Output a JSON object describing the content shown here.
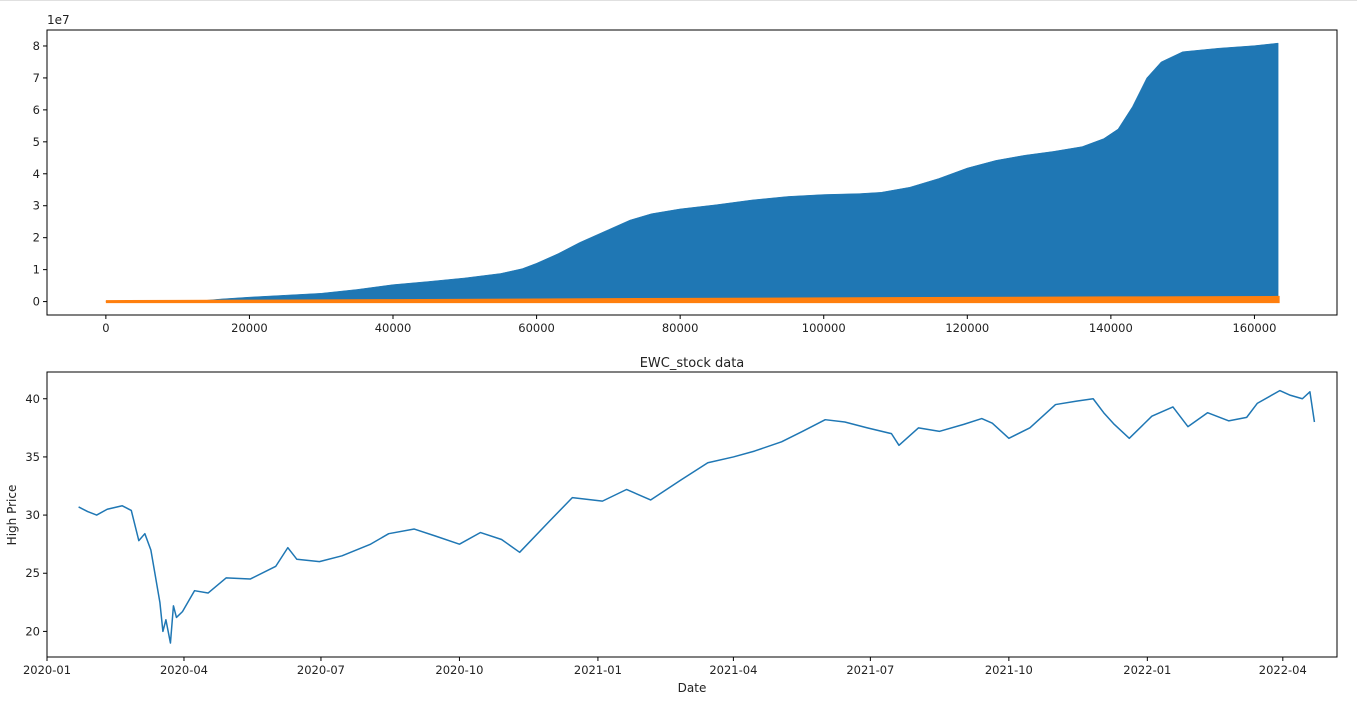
{
  "chart_data": [
    {
      "type": "area",
      "title": "",
      "xlabel": "",
      "ylabel": "",
      "offset_text": "1e7",
      "xlim": [
        -8200,
        171500
      ],
      "ylim": [
        -4200000,
        85000000
      ],
      "x_ticks": [
        0,
        20000,
        40000,
        60000,
        80000,
        100000,
        120000,
        140000,
        160000
      ],
      "x_tick_labels": [
        "0",
        "20000",
        "40000",
        "60000",
        "80000",
        "100000",
        "120000",
        "140000",
        "160000"
      ],
      "y_ticks": [
        0,
        10000000,
        20000000,
        30000000,
        40000000,
        50000000,
        60000000,
        70000000,
        80000000
      ],
      "y_tick_labels": [
        "0",
        "1",
        "2",
        "3",
        "4",
        "5",
        "6",
        "7",
        "8"
      ],
      "grid": false,
      "series": [
        {
          "color": "#1f77b4",
          "x": [
            0,
            5000,
            10000,
            13000,
            16000,
            20000,
            25000,
            30000,
            35000,
            40000,
            45000,
            50000,
            55000,
            58000,
            60000,
            63000,
            66000,
            70000,
            73000,
            76000,
            80000,
            85000,
            90000,
            95000,
            100000,
            105000,
            108000,
            112000,
            116000,
            120000,
            124000,
            128000,
            132000,
            136000,
            139000,
            141000,
            143000,
            145000,
            147000,
            150000,
            155000,
            160000,
            163300
          ],
          "y": [
            0,
            0,
            0,
            200000,
            800000,
            1400000,
            2000000,
            2600000,
            3800000,
            5300000,
            6300000,
            7400000,
            8800000,
            10300000,
            12000000,
            15000000,
            18500000,
            22500000,
            25500000,
            27500000,
            29000000,
            30300000,
            31800000,
            32900000,
            33500000,
            33800000,
            34200000,
            35800000,
            38500000,
            41800000,
            44200000,
            45800000,
            47000000,
            48500000,
            51000000,
            54000000,
            61000000,
            70000000,
            75000000,
            78200000,
            79300000,
            80100000,
            80900000
          ]
        },
        {
          "color": "#ff7f0e",
          "x": [
            0,
            10000,
            20000,
            40000,
            60000,
            80000,
            100000,
            120000,
            140000,
            163300
          ],
          "y": [
            0,
            50000,
            150000,
            300000,
            500000,
            700000,
            850000,
            1000000,
            1150000,
            1300000
          ]
        }
      ]
    },
    {
      "type": "line",
      "title": "EWC_stock data",
      "xlabel": "Date",
      "ylabel": "High Price",
      "xlim": [
        "2020-01-01",
        "2022-05-07"
      ],
      "ylim": [
        17.8,
        42.3
      ],
      "x_tick_labels": [
        "2020-01",
        "2020-04",
        "2020-07",
        "2020-10",
        "2021-01",
        "2021-04",
        "2021-07",
        "2021-10",
        "2022-01",
        "2022-04"
      ],
      "x_tick_dates": [
        "2020-01-01",
        "2020-04-01",
        "2020-07-01",
        "2020-10-01",
        "2021-01-01",
        "2021-04-01",
        "2021-07-01",
        "2021-10-01",
        "2022-01-01",
        "2022-04-01"
      ],
      "y_ticks": [
        20,
        25,
        30,
        35,
        40
      ],
      "y_tick_labels": [
        "20",
        "25",
        "30",
        "35",
        "40"
      ],
      "grid": false,
      "series": [
        {
          "color": "#1f77b4",
          "x": [
            "2020-01-22",
            "2020-01-28",
            "2020-02-03",
            "2020-02-10",
            "2020-02-20",
            "2020-02-26",
            "2020-03-02",
            "2020-03-06",
            "2020-03-10",
            "2020-03-12",
            "2020-03-16",
            "2020-03-18",
            "2020-03-20",
            "2020-03-23",
            "2020-03-25",
            "2020-03-27",
            "2020-03-31",
            "2020-04-08",
            "2020-04-17",
            "2020-04-29",
            "2020-05-15",
            "2020-06-01",
            "2020-06-09",
            "2020-06-15",
            "2020-06-30",
            "2020-07-15",
            "2020-08-03",
            "2020-08-15",
            "2020-09-01",
            "2020-09-15",
            "2020-10-01",
            "2020-10-15",
            "2020-10-29",
            "2020-11-10",
            "2020-11-30",
            "2020-12-15",
            "2021-01-04",
            "2021-01-20",
            "2021-02-05",
            "2021-02-25",
            "2021-03-15",
            "2021-04-01",
            "2021-04-15",
            "2021-05-03",
            "2021-05-17",
            "2021-06-01",
            "2021-06-14",
            "2021-06-29",
            "2021-07-15",
            "2021-07-20",
            "2021-08-02",
            "2021-08-16",
            "2021-09-01",
            "2021-09-13",
            "2021-09-20",
            "2021-10-01",
            "2021-10-15",
            "2021-11-01",
            "2021-11-15",
            "2021-11-26",
            "2021-12-03",
            "2021-12-10",
            "2021-12-20",
            "2022-01-04",
            "2022-01-18",
            "2022-01-28",
            "2022-02-10",
            "2022-02-24",
            "2022-03-08",
            "2022-03-15",
            "2022-03-30",
            "2022-04-06",
            "2022-04-14",
            "2022-04-19",
            "2022-04-22"
          ],
          "y": [
            30.7,
            30.3,
            30.0,
            30.5,
            30.8,
            30.4,
            27.8,
            28.4,
            27.0,
            25.5,
            22.5,
            20.0,
            21.0,
            19.0,
            22.2,
            21.2,
            21.7,
            23.5,
            23.3,
            24.6,
            24.5,
            25.6,
            27.2,
            26.2,
            26.0,
            26.5,
            27.5,
            28.4,
            28.8,
            28.2,
            27.5,
            28.5,
            27.9,
            26.8,
            29.5,
            31.5,
            31.2,
            32.2,
            31.3,
            33.0,
            34.5,
            35.0,
            35.5,
            36.3,
            37.2,
            38.2,
            38.0,
            37.5,
            37.0,
            36.0,
            37.5,
            37.2,
            37.8,
            38.3,
            37.9,
            36.6,
            37.5,
            39.5,
            39.8,
            40.0,
            38.8,
            37.8,
            36.6,
            38.5,
            39.3,
            37.6,
            38.8,
            38.1,
            38.4,
            39.6,
            40.7,
            40.3,
            40.0,
            40.6,
            38.0
          ]
        }
      ]
    }
  ]
}
